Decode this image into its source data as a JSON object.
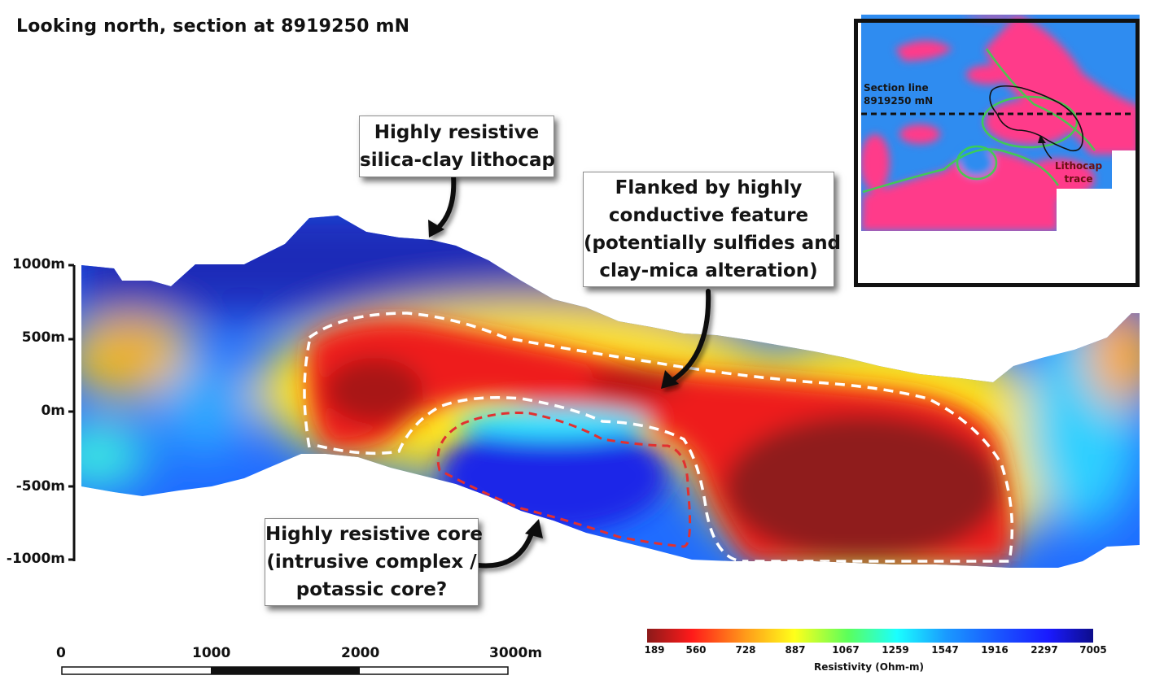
{
  "title": "Looking north, section at 8919250 mN",
  "callouts": {
    "lithocap": [
      "Highly resistive",
      "silica-clay lithocap"
    ],
    "conductive": [
      "Flanked by highly",
      "conductive feature",
      "(potentially sulfides and",
      "clay-mica alteration)"
    ],
    "core": [
      "Highly resistive core",
      "(intrusive complex /",
      "potassic core?"
    ]
  },
  "depth_axis": [
    "1000m",
    "500m",
    "0m",
    "-500m",
    "-1000m"
  ],
  "scale_bar": [
    "0",
    "1000",
    "2000",
    "3000m"
  ],
  "colorbar": {
    "ticks": [
      "189",
      "560",
      "728",
      "887",
      "1067",
      "1259",
      "1547",
      "1916",
      "2297",
      "7005"
    ],
    "title": "Resistivity (Ohm-m)",
    "colors": [
      "#8b1a1a",
      "#ff1a1a",
      "#ff9a1a",
      "#ffff1a",
      "#5bff5b",
      "#1affff",
      "#1a9aff",
      "#1a4fff",
      "#1a1aff",
      "#0d0d8b"
    ]
  },
  "inset": {
    "section_label": [
      "Section line",
      "8919250 mN"
    ],
    "trace_label": [
      "Lithocap",
      "trace"
    ]
  }
}
